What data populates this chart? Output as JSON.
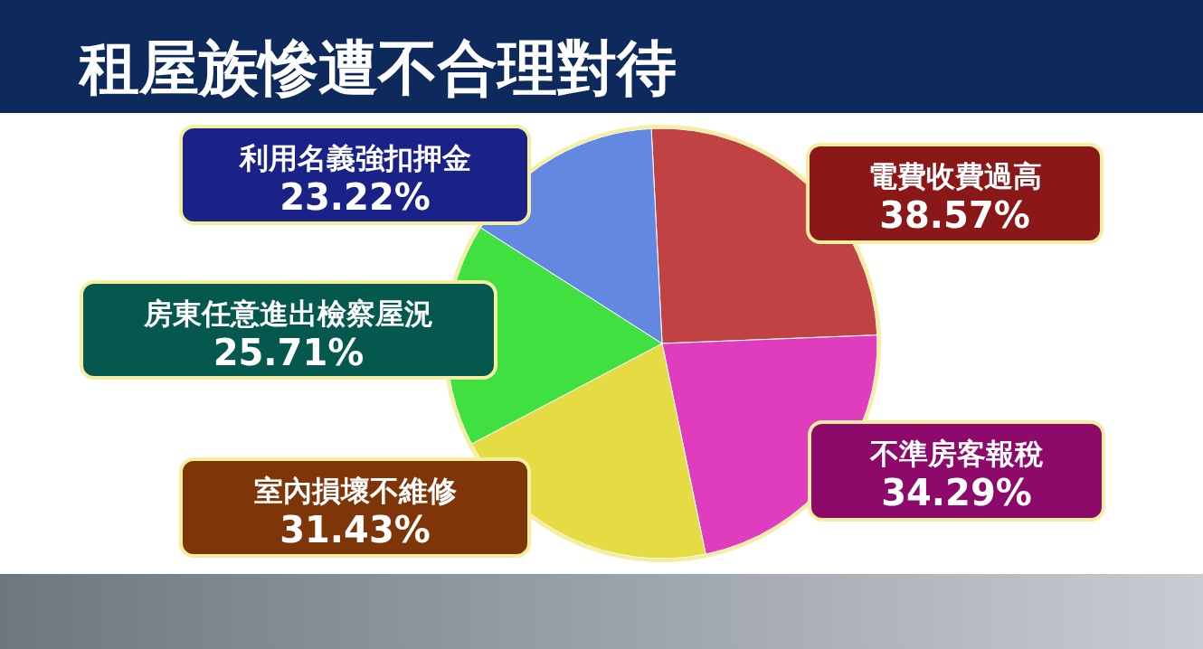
{
  "chart_data": {
    "type": "pie",
    "title": "租屋族慘遭不合理對待",
    "categories": [
      "電費收費過高",
      "不準房客報稅",
      "室內損壞不維修",
      "房東任意進出檢察屋況",
      "利用名義強扣押金"
    ],
    "values": [
      38.57,
      34.29,
      31.43,
      25.71,
      23.22
    ],
    "colors": [
      "#c04242",
      "#e03cbe",
      "#e4dc42",
      "#40e040",
      "#6288e2"
    ],
    "value_labels": [
      "38.57%",
      "34.29%",
      "31.43%",
      "25.71%",
      "23.22%"
    ]
  }
}
